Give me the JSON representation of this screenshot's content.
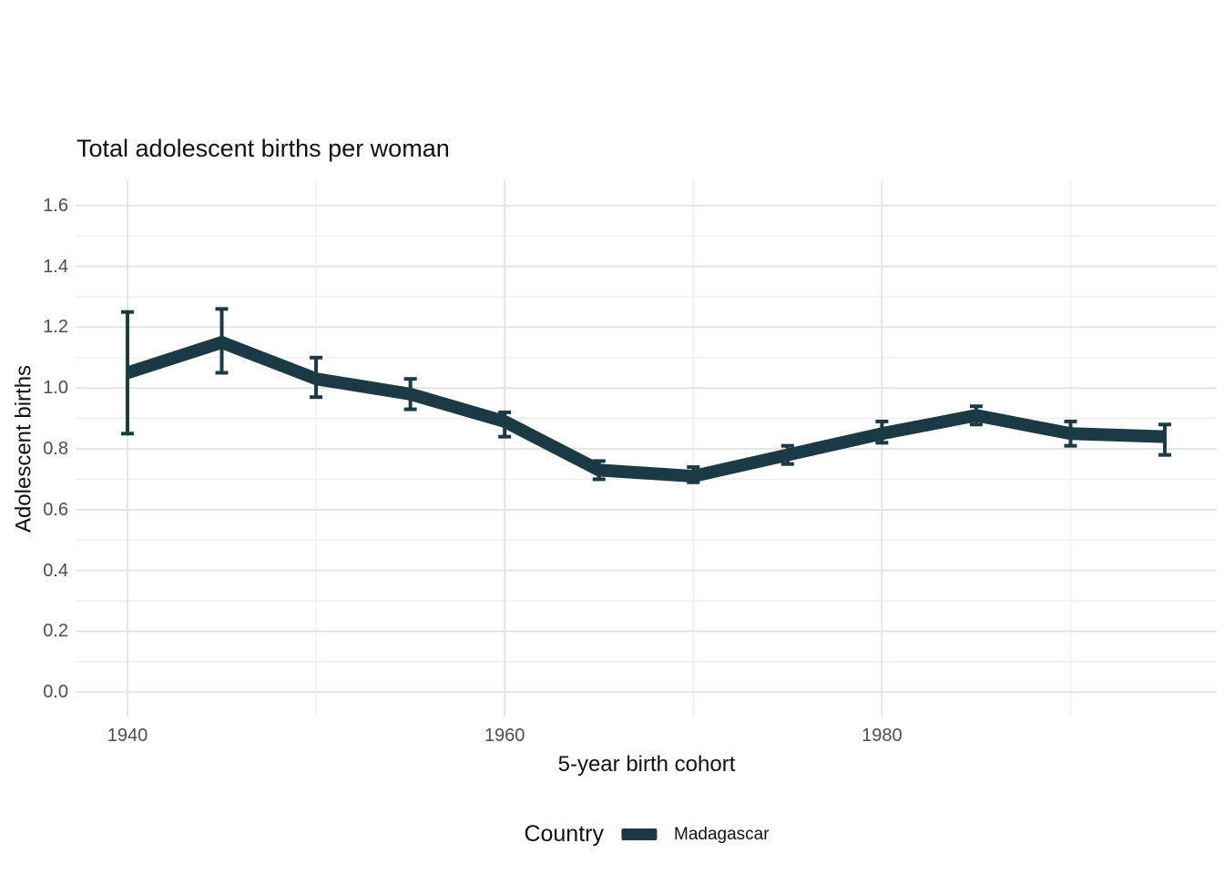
{
  "title": "Total adolescent births per woman",
  "axes": {
    "y_title": "Adolescent births",
    "x_title": "5-year birth cohort",
    "y_tick_labels": [
      "0.0",
      "0.2",
      "0.4",
      "0.6",
      "0.8",
      "1.0",
      "1.2",
      "1.4",
      "1.6"
    ],
    "y_tick_values": [
      0.0,
      0.2,
      0.4,
      0.6,
      0.8,
      1.0,
      1.2,
      1.4,
      1.6
    ],
    "x_tick_labels": [
      "1940",
      "1960",
      "1980"
    ],
    "x_tick_values": [
      1940,
      1960,
      1980
    ]
  },
  "legend": {
    "title": "Country",
    "items": [
      {
        "label": "Madagascar",
        "color": "#1c3a46"
      }
    ]
  },
  "colors": {
    "line": "#1c3a46",
    "error_bar": "#1c3a46",
    "grid_major": "#e2e2e2",
    "grid_minor": "#efefef",
    "tick_text": "#4d4d4d",
    "text": "#111111",
    "background": "#ffffff"
  },
  "chart_data": {
    "type": "line",
    "title": "Total adolescent births per woman",
    "xlabel": "5-year birth cohort",
    "ylabel": "Adolescent births",
    "legend_title": "Country",
    "legend_position": "bottom",
    "grid": true,
    "error_bars": true,
    "xlim": [
      1937.25,
      1997.75
    ],
    "ylim": [
      -0.08,
      1.68
    ],
    "x_major_gridlines": [
      1940,
      1960,
      1980
    ],
    "x_minor_gridlines": [
      1950,
      1970,
      1990
    ],
    "y_major_gridlines": [
      0.0,
      0.2,
      0.4,
      0.6,
      0.8,
      1.0,
      1.2,
      1.4,
      1.6
    ],
    "y_minor_gridlines": [
      0.1,
      0.3,
      0.5,
      0.7,
      0.9,
      1.1,
      1.3,
      1.5
    ],
    "series": [
      {
        "name": "Madagascar",
        "x": [
          1940,
          1945,
          1950,
          1955,
          1960,
          1965,
          1970,
          1975,
          1980,
          1985,
          1990,
          1995
        ],
        "values": [
          1.05,
          1.15,
          1.03,
          0.98,
          0.89,
          0.73,
          0.71,
          0.78,
          0.85,
          0.91,
          0.85,
          0.84
        ],
        "error_low": [
          0.85,
          1.05,
          0.97,
          0.93,
          0.84,
          0.7,
          0.69,
          0.75,
          0.82,
          0.88,
          0.81,
          0.78
        ],
        "error_high": [
          1.25,
          1.26,
          1.1,
          1.03,
          0.92,
          0.76,
          0.74,
          0.81,
          0.89,
          0.94,
          0.89,
          0.88
        ]
      }
    ]
  }
}
